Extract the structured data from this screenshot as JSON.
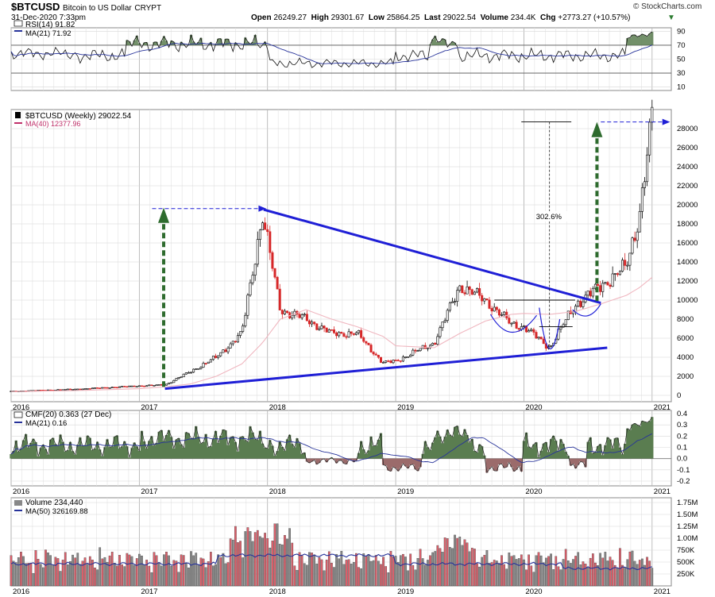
{
  "header": {
    "symbol": "$BTCUSD",
    "name": "Bitcoin to US Dollar",
    "exchange": "CRYPT",
    "datetime": "31-Dec-2020 7:33pm",
    "open_label": "Open",
    "open": "26249.27",
    "high_label": "High",
    "high": "29301.67",
    "low_label": "Low",
    "low": "25864.25",
    "last_label": "Last",
    "last": "29022.54",
    "volume_label": "Volume",
    "volume": "234.4K",
    "chg_label": "Chg",
    "chg": "+2773.27 (+10.57%)",
    "logo": "© StockCharts.com",
    "chg_icon": "triangle-down-icon",
    "color_up": "#2e7d32"
  },
  "rsi_panel": {
    "label": "RSI(14) 91.82",
    "ma_label": "MA(21) 71.92",
    "ticks": [
      "90",
      "70",
      "50",
      "30",
      "10"
    ],
    "levels": [
      70,
      30
    ]
  },
  "price_panel": {
    "label": "$BTCUSD (Weekly) 29022.54",
    "ma_label": "MA(40) 12377.96",
    "ticks": [
      "28000",
      "26000",
      "24000",
      "22000",
      "20000",
      "18000",
      "16000",
      "14000",
      "12000",
      "10000",
      "8000",
      "6000",
      "4000",
      "2000",
      "0"
    ],
    "annotation": "302.6%",
    "color_up": "#000000",
    "color_down": "#d62728",
    "ma_color": "#f0b7c0",
    "trendline_color": "#1f1fd6",
    "target_color": "#2e6b2e"
  },
  "cmf_panel": {
    "label": "CMF(20) 0.363 (27 Dec)",
    "ma_label": "MA(21) 0.16",
    "ticks": [
      "0.4",
      "0.3",
      "0.2",
      "0.1",
      "0.0",
      "-0.1",
      "-0.2"
    ],
    "pos_color": "#5a7d50",
    "neg_color": "#9b6b6b"
  },
  "volume_panel": {
    "label": "Volume 234,440",
    "ma_label": "MA(50) 326169.88",
    "ticks": [
      "1.75M",
      "1.50M",
      "1.25M",
      "1.00M",
      "750K",
      "500K",
      "250K"
    ]
  },
  "x_axis": {
    "labels": [
      "2016",
      "2017",
      "2018",
      "2019",
      "2020",
      "2021"
    ]
  },
  "chart_data": {
    "type": "line",
    "title": "$BTCUSD Bitcoin to US Dollar CRYPT",
    "x": [
      2016.0,
      2016.5,
      2017.0,
      2017.2,
      2017.4,
      2017.6,
      2017.8,
      2017.96,
      2018.1,
      2018.3,
      2018.5,
      2018.7,
      2018.9,
      2019.0,
      2019.3,
      2019.5,
      2019.7,
      2019.9,
      2020.0,
      2020.2,
      2020.4,
      2020.6,
      2020.8,
      2020.9,
      2021.0
    ],
    "series": [
      {
        "name": "$BTCUSD (Weekly)",
        "values": [
          430,
          650,
          1000,
          1100,
          2500,
          4000,
          6500,
          19000,
          9000,
          8000,
          6500,
          6500,
          3400,
          3600,
          5500,
          11500,
          10000,
          7500,
          7200,
          5000,
          9500,
          11500,
          13500,
          19000,
          29022.54
        ]
      },
      {
        "name": "MA(40)",
        "values": [
          400,
          500,
          700,
          900,
          1200,
          2000,
          3300,
          5500,
          8000,
          9000,
          8000,
          7200,
          6200,
          5200,
          5000,
          6500,
          7800,
          8500,
          8600,
          8500,
          8800,
          9600,
          10500,
          11300,
          12377.96
        ]
      }
    ],
    "ylabel": "",
    "ylim": [
      0,
      29500
    ],
    "y_ticks": [
      0,
      2000,
      4000,
      6000,
      8000,
      10000,
      12000,
      14000,
      16000,
      18000,
      20000,
      22000,
      24000,
      26000,
      28000
    ],
    "annotations": [
      "302.6%"
    ],
    "rsi": {
      "name": "RSI(14)",
      "last": 91.82,
      "ma_name": "MA(21)",
      "ma_last": 71.92,
      "ylim": [
        10,
        95
      ]
    },
    "cmf": {
      "name": "CMF(20)",
      "last": 0.363,
      "ma_name": "MA(21)",
      "ma_last": 0.16,
      "ylim": [
        -0.2,
        0.4
      ]
    },
    "volume": {
      "name": "Volume",
      "last": 234440,
      "ma_name": "MA(50)",
      "ma_last": 326169.88,
      "ylim": [
        0,
        1750000
      ]
    },
    "grid": true,
    "legend": "top-left"
  }
}
